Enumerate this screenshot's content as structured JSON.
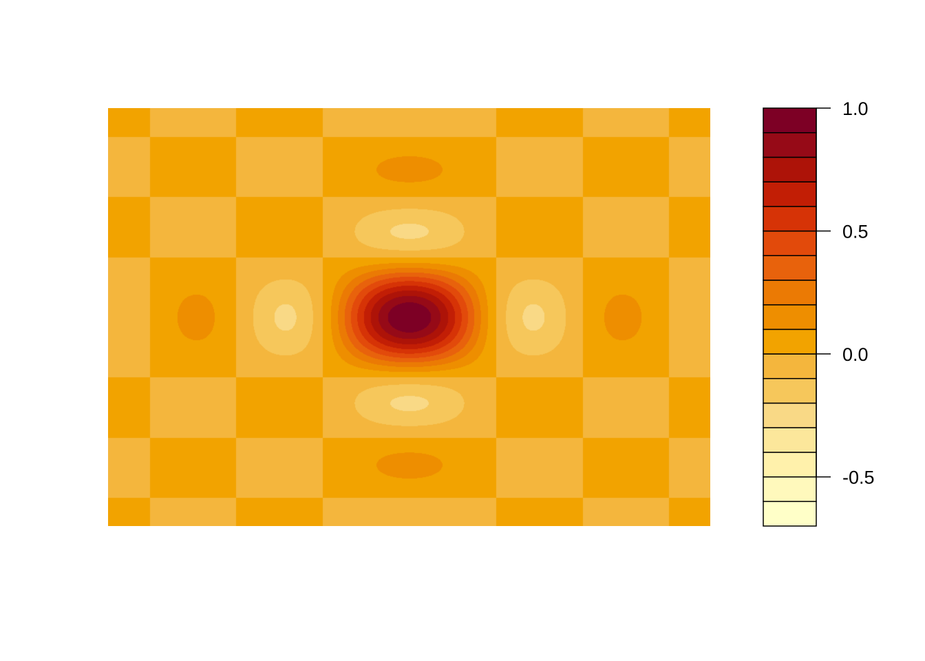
{
  "chart_data": {
    "type": "heatmap",
    "style": "filled-contour",
    "title": "",
    "xlabel": "",
    "ylabel": "",
    "function": "sinc of radial distance",
    "z_range": [
      -0.7,
      1.0
    ],
    "color_scale": {
      "levels": [
        -0.7,
        -0.6,
        -0.5,
        -0.4,
        -0.3,
        -0.2,
        -0.1,
        0.0,
        0.1,
        0.2,
        0.3,
        0.4,
        0.5,
        0.6,
        0.7,
        0.8,
        0.9,
        1.0
      ],
      "colors": [
        "#FFFFC8",
        "#FFF9BC",
        "#FFF1AB",
        "#FCE79B",
        "#F9D986",
        "#F6C75B",
        "#F4B63D",
        "#F2A300",
        "#EE8E00",
        "#EB7A04",
        "#E8620C",
        "#E24A0B",
        "#D63306",
        "#C21E05",
        "#AD1308",
        "#960A17",
        "#7D0025"
      ],
      "ticks": [
        {
          "value": 1.0,
          "label": "1.0"
        },
        {
          "value": 0.5,
          "label": "0.5"
        },
        {
          "value": 0.0,
          "label": "0.0"
        },
        {
          "value": -0.5,
          "label": "-0.5"
        }
      ],
      "placement": "right"
    },
    "grid": false,
    "axes_drawn": false
  }
}
